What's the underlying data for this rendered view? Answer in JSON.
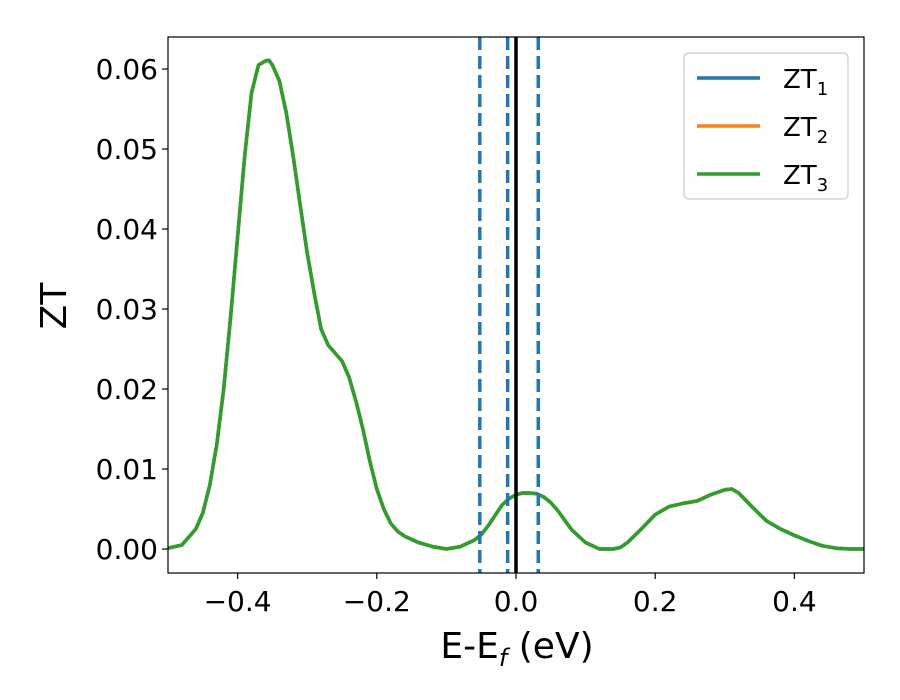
{
  "chart_data": {
    "type": "line",
    "title": "",
    "xlabel": "E-E",
    "xlabel_subscript": "f",
    "xlabel_suffix": " (eV)",
    "ylabel": "ZT",
    "xlim": [
      -0.5,
      0.5
    ],
    "ylim": [
      -0.003,
      0.064
    ],
    "xticks": [
      -0.4,
      -0.2,
      0.0,
      0.2,
      0.4
    ],
    "xtick_labels": [
      "−0.4",
      "−0.2",
      "0.0",
      "0.2",
      "0.4"
    ],
    "yticks": [
      0.0,
      0.01,
      0.02,
      0.03,
      0.04,
      0.05,
      0.06
    ],
    "ytick_labels": [
      "0.00",
      "0.01",
      "0.02",
      "0.03",
      "0.04",
      "0.05",
      "0.06"
    ],
    "grid": false,
    "legend_position": "top-right",
    "x": [
      -0.5,
      -0.48,
      -0.46,
      -0.45,
      -0.44,
      -0.43,
      -0.42,
      -0.41,
      -0.4,
      -0.39,
      -0.38,
      -0.37,
      -0.36,
      -0.355,
      -0.35,
      -0.34,
      -0.33,
      -0.32,
      -0.31,
      -0.3,
      -0.29,
      -0.28,
      -0.27,
      -0.26,
      -0.25,
      -0.24,
      -0.23,
      -0.22,
      -0.21,
      -0.2,
      -0.19,
      -0.18,
      -0.17,
      -0.16,
      -0.15,
      -0.14,
      -0.12,
      -0.1,
      -0.08,
      -0.06,
      -0.05,
      -0.04,
      -0.03,
      -0.02,
      -0.01,
      0.0,
      0.01,
      0.02,
      0.03,
      0.04,
      0.05,
      0.06,
      0.07,
      0.08,
      0.1,
      0.12,
      0.14,
      0.15,
      0.16,
      0.18,
      0.2,
      0.22,
      0.24,
      0.26,
      0.28,
      0.3,
      0.31,
      0.32,
      0.34,
      0.36,
      0.38,
      0.4,
      0.42,
      0.44,
      0.46,
      0.48,
      0.5
    ],
    "series": [
      {
        "name": "ZT",
        "subscript": "1",
        "color": "#1f77b4",
        "values": [
          0.0001,
          0.0005,
          0.0025,
          0.0045,
          0.008,
          0.013,
          0.02,
          0.029,
          0.039,
          0.049,
          0.057,
          0.0605,
          0.061,
          0.0611,
          0.0605,
          0.0585,
          0.0545,
          0.049,
          0.043,
          0.037,
          0.032,
          0.0275,
          0.0255,
          0.0245,
          0.0235,
          0.0215,
          0.0185,
          0.015,
          0.011,
          0.0075,
          0.005,
          0.0032,
          0.0022,
          0.0016,
          0.0012,
          0.0008,
          0.0003,
          0.0,
          0.0003,
          0.0011,
          0.0018,
          0.0029,
          0.0042,
          0.0055,
          0.0063,
          0.0068,
          0.007,
          0.007,
          0.0069,
          0.0065,
          0.0058,
          0.0048,
          0.0036,
          0.0024,
          0.0008,
          0.0,
          0.0,
          0.0002,
          0.0008,
          0.0025,
          0.0043,
          0.0053,
          0.0057,
          0.006,
          0.0068,
          0.0074,
          0.0075,
          0.007,
          0.0052,
          0.0035,
          0.0025,
          0.0017,
          0.001,
          0.0004,
          0.0001,
          0.0,
          0.0
        ]
      },
      {
        "name": "ZT",
        "subscript": "2",
        "color": "#ff7f0e",
        "values": [
          0.0001,
          0.0005,
          0.0025,
          0.0045,
          0.008,
          0.013,
          0.02,
          0.029,
          0.039,
          0.049,
          0.057,
          0.0605,
          0.061,
          0.0611,
          0.0605,
          0.0585,
          0.0545,
          0.049,
          0.043,
          0.037,
          0.032,
          0.0275,
          0.0255,
          0.0245,
          0.0235,
          0.0215,
          0.0185,
          0.015,
          0.011,
          0.0075,
          0.005,
          0.0032,
          0.0022,
          0.0016,
          0.0012,
          0.0008,
          0.0003,
          0.0,
          0.0003,
          0.0011,
          0.0018,
          0.0029,
          0.0042,
          0.0055,
          0.0063,
          0.0068,
          0.007,
          0.007,
          0.0069,
          0.0065,
          0.0058,
          0.0048,
          0.0036,
          0.0024,
          0.0008,
          0.0,
          0.0,
          0.0002,
          0.0008,
          0.0025,
          0.0043,
          0.0053,
          0.0057,
          0.006,
          0.0068,
          0.0074,
          0.0075,
          0.007,
          0.0052,
          0.0035,
          0.0025,
          0.0017,
          0.001,
          0.0004,
          0.0001,
          0.0,
          0.0
        ]
      },
      {
        "name": "ZT",
        "subscript": "3",
        "color": "#2ca02c",
        "values": [
          0.0001,
          0.0005,
          0.0025,
          0.0045,
          0.008,
          0.013,
          0.02,
          0.029,
          0.039,
          0.049,
          0.057,
          0.0605,
          0.061,
          0.0611,
          0.0605,
          0.0585,
          0.0545,
          0.049,
          0.043,
          0.037,
          0.032,
          0.0275,
          0.0255,
          0.0245,
          0.0235,
          0.0215,
          0.0185,
          0.015,
          0.011,
          0.0075,
          0.005,
          0.0032,
          0.0022,
          0.0016,
          0.0012,
          0.0008,
          0.0003,
          0.0,
          0.0003,
          0.0011,
          0.0018,
          0.0029,
          0.0042,
          0.0055,
          0.0063,
          0.0068,
          0.007,
          0.007,
          0.0069,
          0.0065,
          0.0058,
          0.0048,
          0.0036,
          0.0024,
          0.0008,
          0.0,
          0.0,
          0.0002,
          0.0008,
          0.0025,
          0.0043,
          0.0053,
          0.0057,
          0.006,
          0.0068,
          0.0074,
          0.0075,
          0.007,
          0.0052,
          0.0035,
          0.0025,
          0.0017,
          0.001,
          0.0004,
          0.0001,
          0.0,
          0.0
        ]
      }
    ],
    "vlines": [
      {
        "x": -0.052,
        "style": "dashed",
        "color": "#1f77b4"
      },
      {
        "x": -0.012,
        "style": "dashed",
        "color": "#1f77b4"
      },
      {
        "x": 0.032,
        "style": "dashed",
        "color": "#1f77b4"
      },
      {
        "x": 0.0,
        "style": "solid",
        "color": "#000000"
      }
    ]
  }
}
